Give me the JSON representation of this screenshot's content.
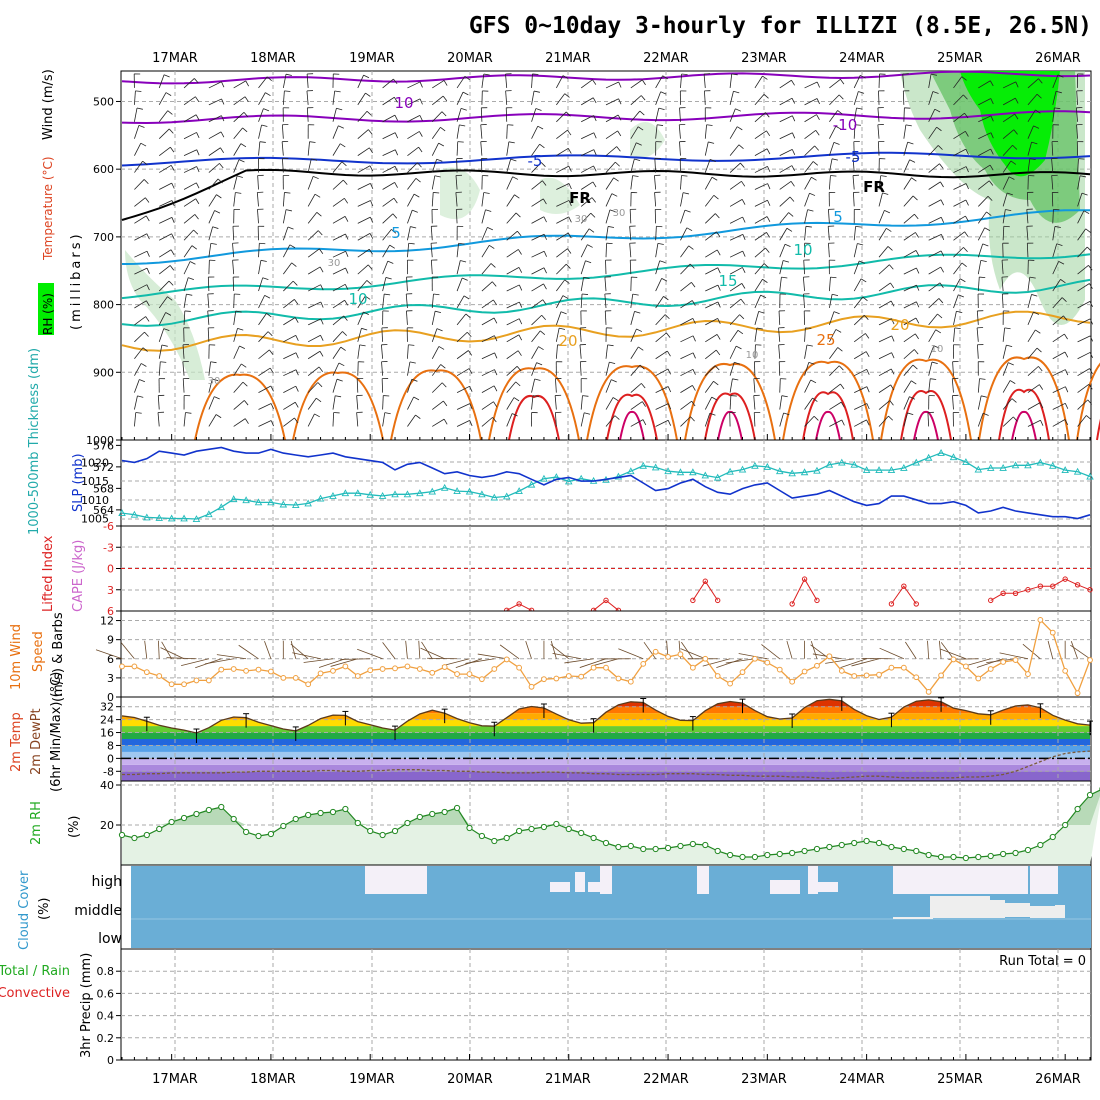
{
  "title": "GFS 0~10day 3-hourly for ILLIZI (8.5E, 26.5N)",
  "dates": [
    "17MAR",
    "18MAR",
    "19MAR",
    "20MAR",
    "21MAR",
    "22MAR",
    "23MAR",
    "24MAR",
    "25MAR",
    "26MAR"
  ],
  "colors": {
    "purple": "#8800bb",
    "blue_dark": "#1133cc",
    "blue": "#1166ee",
    "cyan_blue": "#1199dd",
    "teal": "#11bbaa",
    "orange_light": "#e8a020",
    "orange": "#e87010",
    "red": "#dd2020",
    "magenta": "#cc0066",
    "green": "#00ee00",
    "cloud": "#6aaed6",
    "cyan_trace": "#22bbbb",
    "orange_wind": "#f0a040"
  },
  "panels": {
    "upper": {
      "ylabel_rh": "RH (%)",
      "ylabel_temp": "Temperature (°C)",
      "ylabel_wind": "Wind (m/s)",
      "ylabel_mb": "(millibars)",
      "y_ticks": [
        "500",
        "600",
        "700",
        "800",
        "900",
        "1000"
      ],
      "contour_labels": [
        "10",
        "-10",
        "-5",
        "-5",
        "FR",
        "FR",
        "5",
        "5",
        "10",
        "10",
        "15",
        "20",
        "20",
        "25",
        "30",
        "30",
        "30",
        "10",
        "10",
        "30"
      ]
    },
    "thickness": {
      "ylabel_left": "1000-500mb Thickness (dm)",
      "ylabel_right": "SLP (mb)",
      "left_ticks": [
        "576",
        "572",
        "568",
        "564"
      ],
      "right_ticks": [
        "1020",
        "1015",
        "1010",
        "1005"
      ]
    },
    "cape": {
      "ylabel_left": "Lifted Index",
      "ylabel_right": "CAPE (J/kg)",
      "ticks": [
        "-6",
        "-3",
        "0",
        "3",
        "6"
      ]
    },
    "wind10": {
      "ylabel_left": "10m Wind",
      "ylabel_mid": "Speed",
      "ylabel_right": "(m/s) & Barbs",
      "ticks": [
        "12",
        "9",
        "6",
        "3",
        "0"
      ]
    },
    "temp2m": {
      "ylabel_a": "2m Temp",
      "ylabel_b": "2m DewPt",
      "ylabel_c": "(6hr Min/Max) (°C)",
      "ticks": [
        "32",
        "24",
        "16",
        "8",
        "0",
        "-8"
      ]
    },
    "rh2m": {
      "ylabel": "2m RH",
      "unit": "(%)",
      "ticks": [
        "40",
        "20"
      ]
    },
    "cloud": {
      "ylabel": "Cloud Cover",
      "unit": "(%)",
      "levels": [
        "high",
        "middle",
        "low"
      ]
    },
    "precip": {
      "ylabel_left": "Total / Rain",
      "ylabel_left2": "Convective",
      "ylabel": "3hr Precip (mm)",
      "run_total": "Run Total = 0",
      "ticks": [
        "0.8",
        "0.6",
        "0.4",
        "0.2",
        "0"
      ]
    }
  },
  "chart_data": [
    {
      "type": "line",
      "title": "1000-500mb Thickness (dm)",
      "x": [
        "16MAR12",
        "16MAR15",
        "16MAR18",
        "16MAR21",
        "17MAR00",
        "17MAR03",
        "17MAR06",
        "17MAR09",
        "17MAR12",
        "17MAR15",
        "17MAR18",
        "17MAR21",
        "18MAR00",
        "18MAR03",
        "18MAR06",
        "18MAR09",
        "18MAR12",
        "18MAR15",
        "18MAR18",
        "18MAR21",
        "19MAR00",
        "19MAR03",
        "19MAR06",
        "19MAR09",
        "19MAR12",
        "19MAR15",
        "19MAR18",
        "19MAR21",
        "20MAR00",
        "20MAR03",
        "20MAR06",
        "20MAR09",
        "20MAR12",
        "20MAR15",
        "20MAR18",
        "20MAR21",
        "21MAR00",
        "21MAR03",
        "21MAR06",
        "21MAR09",
        "21MAR12",
        "21MAR15",
        "21MAR18",
        "21MAR21",
        "22MAR00",
        "22MAR03",
        "22MAR06",
        "22MAR09",
        "22MAR12",
        "22MAR15",
        "22MAR18",
        "22MAR21",
        "23MAR00",
        "23MAR03",
        "23MAR06",
        "23MAR09",
        "23MAR12",
        "23MAR15",
        "23MAR18",
        "23MAR21",
        "24MAR00",
        "24MAR03",
        "24MAR06",
        "24MAR09",
        "24MAR12",
        "24MAR15",
        "24MAR18",
        "24MAR21",
        "25MAR00",
        "25MAR03",
        "25MAR06",
        "25MAR09",
        "25MAR12",
        "25MAR15",
        "25MAR18",
        "25MAR21",
        "26MAR00",
        "26MAR03",
        "26MAR06"
      ],
      "series": [
        {
          "name": "Thickness",
          "values": [
            563.4,
            563.1,
            562.6,
            562.5,
            562.4,
            562.4,
            562.3,
            563.2,
            564.5,
            566.0,
            565.8,
            565.4,
            565.4,
            565.0,
            564.9,
            565.2,
            566.1,
            566.6,
            567.1,
            567.1,
            566.8,
            566.6,
            566.9,
            566.9,
            567.1,
            567.4,
            568.1,
            567.5,
            567.4,
            566.9,
            566.3,
            566.5,
            567.5,
            568.7,
            569.8,
            570.1,
            569.3,
            569.8,
            569.4,
            569.6,
            570.2,
            571.2,
            572.2,
            571.9,
            571.2,
            571.0,
            571.0,
            570.4,
            570.0,
            571.1,
            571.5,
            572.2,
            572.0,
            571.2,
            570.8,
            571.0,
            571.3,
            572.4,
            572.8,
            572.4,
            571.4,
            571.4,
            571.4,
            571.8,
            572.8,
            573.7,
            574.6,
            573.8,
            572.9,
            571.5,
            571.8,
            571.8,
            572.3,
            572.3,
            572.8,
            572.2,
            571.4,
            571.1,
            570.2
          ]
        },
        {
          "name": "SLP",
          "values": [
            1020.5,
            1020.0,
            1021.0,
            1023.0,
            1022.5,
            1022.0,
            1023.0,
            1023.5,
            1024.0,
            1023.0,
            1022.5,
            1022.5,
            1023.5,
            1022.5,
            1022.0,
            1021.5,
            1022.0,
            1022.5,
            1021.5,
            1021.0,
            1020.5,
            1020.0,
            1018.0,
            1019.5,
            1020.0,
            1018.5,
            1017.0,
            1017.5,
            1016.5,
            1016.0,
            1016.5,
            1017.5,
            1017.0,
            1015.5,
            1014.0,
            1015.5,
            1016.0,
            1015.0,
            1015.0,
            1015.5,
            1016.0,
            1016.5,
            1014.5,
            1012.5,
            1013.0,
            1014.5,
            1015.5,
            1013.5,
            1012.0,
            1011.5,
            1013.0,
            1014.0,
            1014.5,
            1012.5,
            1010.5,
            1011.0,
            1011.5,
            1012.5,
            1011.0,
            1009.5,
            1008.5,
            1009.0,
            1011.0,
            1011.0,
            1010.0,
            1009.0,
            1009.0,
            1009.5,
            1008.5,
            1006.5,
            1007.0,
            1008.0,
            1007.0,
            1006.5,
            1006.0,
            1005.5,
            1005.5,
            1005.0,
            1006.0
          ]
        }
      ],
      "ylim_left": [
        561,
        577
      ],
      "ylim_right": [
        1003,
        1026
      ]
    },
    {
      "type": "line",
      "title": "Lifted Index",
      "x_indices": [
        31,
        32,
        33,
        38,
        39,
        40,
        46,
        47,
        48,
        54,
        55,
        56,
        62,
        63,
        64,
        70,
        71,
        72,
        73,
        74,
        75,
        76,
        77,
        78
      ],
      "values": [
        5.9,
        5.0,
        5.9,
        5.9,
        4.5,
        5.9,
        4.5,
        1.8,
        4.5,
        5.0,
        1.5,
        4.5,
        5.0,
        2.5,
        5.0,
        4.5,
        3.5,
        3.5,
        3.0,
        2.5,
        2.5,
        1.5,
        2.3,
        3.0
      ],
      "ylim": [
        6,
        -6
      ]
    },
    {
      "type": "line",
      "title": "10m Wind Speed",
      "values": [
        4.8,
        4.8,
        3.9,
        3.3,
        2.0,
        2.0,
        2.6,
        2.6,
        4.3,
        4.4,
        4.1,
        4.3,
        4.0,
        3.0,
        3.0,
        2.0,
        3.7,
        4.1,
        4.8,
        3.3,
        4.2,
        4.4,
        4.5,
        4.8,
        4.4,
        3.8,
        4.7,
        3.6,
        3.6,
        2.8,
        4.4,
        5.9,
        4.6,
        1.6,
        2.8,
        2.9,
        3.3,
        3.2,
        4.6,
        4.6,
        2.9,
        2.4,
        5.2,
        7.1,
        6.3,
        6.7,
        4.6,
        6.0,
        3.3,
        2.1,
        3.9,
        6.0,
        5.4,
        4.3,
        2.4,
        4.0,
        4.9,
        6.4,
        4.1,
        3.3,
        3.4,
        3.5,
        4.6,
        4.6,
        3.1,
        0.8,
        3.4,
        5.9,
        4.8,
        2.9,
        4.4,
        5.5,
        5.8,
        3.6,
        12.1,
        10.1,
        4.1,
        0.6,
        5.8
      ],
      "ylim": [
        0,
        13.5
      ]
    },
    {
      "type": "area",
      "title": "2m Temp",
      "values": [
        26.3,
        25.3,
        23.0,
        20.5,
        18.8,
        17.5,
        15.7,
        19.0,
        23.6,
        25.6,
        25.2,
        22.4,
        20.3,
        18.2,
        17.0,
        20.4,
        24.6,
        26.8,
        26.6,
        22.8,
        20.8,
        18.8,
        17.5,
        23.0,
        27.5,
        29.8,
        28.0,
        24.6,
        22.1,
        20.2,
        19.9,
        25.2,
        30.6,
        32.1,
        31.2,
        27.4,
        23.9,
        21.8,
        22.1,
        28.6,
        33.2,
        35.0,
        34.6,
        29.9,
        26.0,
        23.6,
        23.4,
        29.5,
        33.8,
        35.2,
        34.2,
        29.6,
        25.8,
        24.4,
        25.0,
        31.5,
        35.7,
        36.6,
        35.6,
        30.3,
        26.4,
        24.1,
        25.5,
        31.8,
        35.4,
        36.2,
        35.0,
        31.1,
        29.6,
        27.6,
        27.0,
        29.9,
        32.4,
        33.1,
        31.3,
        26.7,
        23.7,
        21.4,
        20.6
      ],
      "ylim": [
        -14,
        38
      ]
    },
    {
      "type": "line",
      "title": "2m DewPt",
      "values": [
        -10,
        -10,
        -9.5,
        -9.5,
        -9,
        -9,
        -9,
        -9,
        -9,
        -8.5,
        -8.5,
        -8,
        -8,
        -8,
        -8,
        -8,
        -7.5,
        -7.5,
        -8,
        -8,
        -7.5,
        -7.5,
        -7,
        -7,
        -7,
        -7.5,
        -7.5,
        -8,
        -8,
        -8.5,
        -8.5,
        -9,
        -9,
        -9,
        -8.5,
        -8.5,
        -9,
        -9,
        -9.5,
        -9.5,
        -10,
        -10,
        -10,
        -10,
        -9.5,
        -9.5,
        -9.5,
        -10,
        -10,
        -10.5,
        -10.5,
        -11,
        -11,
        -11,
        -11.5,
        -11.5,
        -12,
        -12.5,
        -12,
        -11.5,
        -11,
        -11,
        -11.5,
        -12,
        -12,
        -12,
        -12,
        -12,
        -11.5,
        -11.5,
        -11,
        -10,
        -8,
        -5,
        -2,
        1,
        3,
        4,
        4.5
      ],
      "ylim": [
        -14,
        38
      ]
    },
    {
      "type": "area",
      "title": "2m RH",
      "values": [
        15,
        13.5,
        15,
        18,
        21.5,
        23.5,
        25.5,
        27.5,
        29,
        23,
        16.5,
        14.5,
        15.5,
        19.5,
        23,
        25,
        26,
        26.5,
        28,
        21,
        17,
        15,
        17,
        21,
        24,
        25.5,
        26.5,
        28.5,
        18.5,
        14.5,
        12,
        13.5,
        17,
        18,
        19,
        20.5,
        18,
        16,
        13.5,
        11,
        9,
        9.5,
        8,
        8,
        8.5,
        9.5,
        10.5,
        10,
        7,
        5,
        4,
        4,
        5,
        5.5,
        6,
        7,
        8,
        9,
        10,
        11,
        12,
        11,
        9,
        8,
        7,
        5,
        4,
        4,
        3.5,
        4,
        4.5,
        5.5,
        6,
        7.5,
        10,
        14,
        20,
        28,
        35,
        38
      ],
      "ylim": [
        0,
        42
      ]
    },
    {
      "type": "bar",
      "title": "Cloud Cover",
      "levels": [
        "high",
        "middle",
        "low"
      ],
      "high_pct": [
        0,
        0,
        0,
        0,
        0,
        0,
        0,
        0,
        0,
        0,
        0,
        0,
        0,
        0,
        0,
        0,
        0,
        0,
        0,
        0,
        0,
        0,
        0,
        0,
        0,
        0,
        0,
        0,
        0,
        0,
        0,
        0,
        0,
        0,
        0,
        0,
        0,
        0,
        0,
        0,
        30,
        30,
        60,
        50,
        70,
        0,
        0,
        0,
        0,
        0,
        0,
        0,
        0,
        0,
        0,
        0,
        0,
        0,
        0,
        0,
        0,
        0,
        0,
        0,
        0,
        0,
        0,
        0,
        0,
        0,
        0,
        0,
        0,
        0,
        0,
        0,
        0,
        0,
        0
      ],
      "high_clear_extra": "white patches in high layer on 19MAR, 21MAR, 22MAR-23MAR, 23MAR-24MAR, 25MAR",
      "run_total": 0
    },
    {
      "type": "bar",
      "title": "3hr Precip (mm)",
      "values": [
        0,
        0,
        0,
        0,
        0,
        0,
        0,
        0,
        0,
        0
      ],
      "ylim": [
        0,
        1
      ]
    }
  ]
}
